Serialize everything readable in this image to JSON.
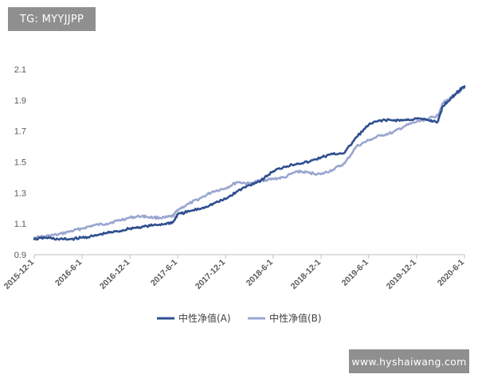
{
  "watermarks": {
    "top_left": "TG: MYYJJPP",
    "bottom_right": "www.hyshaiwang.com"
  },
  "chart_data": {
    "type": "line",
    "title": "",
    "xlabel": "",
    "ylabel": "",
    "ylim": [
      0.9,
      2.1
    ],
    "yticks": [
      0.9,
      1.1,
      1.3,
      1.5,
      1.7,
      1.9,
      2.1
    ],
    "xlim": [
      "2015-12-1",
      "2020-6-1"
    ],
    "xticks": [
      "2015-12-1",
      "2016-6-1",
      "2016-12-1",
      "2017-6-1",
      "2017-12-1",
      "2018-6-1",
      "2018-12-1",
      "2019-6-1",
      "2019-12-1",
      "2020-6-1"
    ],
    "grid": false,
    "legend": "bottom-center",
    "series": [
      {
        "name": "中性净值(A)",
        "color": "#2f4f8f",
        "points": [
          [
            "2015-12-1",
            1.0
          ],
          [
            "2016-1-15",
            1.01
          ],
          [
            "2016-3-1",
            1.0
          ],
          [
            "2016-4-15",
            1.0
          ],
          [
            "2016-6-1",
            1.01
          ],
          [
            "2016-7-15",
            1.02
          ],
          [
            "2016-9-1",
            1.04
          ],
          [
            "2016-10-15",
            1.05
          ],
          [
            "2016-12-1",
            1.07
          ],
          [
            "2017-1-15",
            1.08
          ],
          [
            "2017-3-1",
            1.09
          ],
          [
            "2017-4-15",
            1.1
          ],
          [
            "2017-5-15",
            1.11
          ],
          [
            "2017-6-1",
            1.16
          ],
          [
            "2017-7-15",
            1.18
          ],
          [
            "2017-9-1",
            1.2
          ],
          [
            "2017-10-15",
            1.23
          ],
          [
            "2017-12-1",
            1.26
          ],
          [
            "2018-1-15",
            1.31
          ],
          [
            "2018-3-1",
            1.35
          ],
          [
            "2018-4-15",
            1.38
          ],
          [
            "2018-6-1",
            1.44
          ],
          [
            "2018-7-15",
            1.47
          ],
          [
            "2018-9-1",
            1.49
          ],
          [
            "2018-10-15",
            1.5
          ],
          [
            "2018-12-1",
            1.53
          ],
          [
            "2019-1-15",
            1.55
          ],
          [
            "2019-3-1",
            1.56
          ],
          [
            "2019-4-15",
            1.66
          ],
          [
            "2019-6-1",
            1.74
          ],
          [
            "2019-7-15",
            1.77
          ],
          [
            "2019-9-1",
            1.77
          ],
          [
            "2019-10-15",
            1.77
          ],
          [
            "2019-12-1",
            1.78
          ],
          [
            "2020-1-15",
            1.77
          ],
          [
            "2020-2-20",
            1.76
          ],
          [
            "2020-3-10",
            1.86
          ],
          [
            "2020-4-15",
            1.92
          ],
          [
            "2020-5-10",
            1.96
          ],
          [
            "2020-6-1",
            1.99
          ]
        ]
      },
      {
        "name": "中性净值(B)",
        "color": "#9aa6cf",
        "points": [
          [
            "2015-12-1",
            1.01
          ],
          [
            "2016-1-15",
            1.02
          ],
          [
            "2016-3-1",
            1.03
          ],
          [
            "2016-4-15",
            1.05
          ],
          [
            "2016-6-1",
            1.07
          ],
          [
            "2016-7-15",
            1.09
          ],
          [
            "2016-9-1",
            1.1
          ],
          [
            "2016-10-15",
            1.12
          ],
          [
            "2016-12-1",
            1.14
          ],
          [
            "2017-1-15",
            1.15
          ],
          [
            "2017-3-1",
            1.14
          ],
          [
            "2017-4-15",
            1.14
          ],
          [
            "2017-5-15",
            1.15
          ],
          [
            "2017-6-1",
            1.19
          ],
          [
            "2017-7-15",
            1.23
          ],
          [
            "2017-9-1",
            1.27
          ],
          [
            "2017-10-15",
            1.31
          ],
          [
            "2017-12-1",
            1.33
          ],
          [
            "2018-1-15",
            1.37
          ],
          [
            "2018-3-1",
            1.36
          ],
          [
            "2018-4-15",
            1.38
          ],
          [
            "2018-6-1",
            1.39
          ],
          [
            "2018-7-15",
            1.4
          ],
          [
            "2018-9-1",
            1.44
          ],
          [
            "2018-10-15",
            1.43
          ],
          [
            "2018-12-1",
            1.42
          ],
          [
            "2019-1-15",
            1.45
          ],
          [
            "2019-3-1",
            1.49
          ],
          [
            "2019-4-15",
            1.6
          ],
          [
            "2019-6-1",
            1.64
          ],
          [
            "2019-7-15",
            1.67
          ],
          [
            "2019-9-1",
            1.69
          ],
          [
            "2019-10-15",
            1.73
          ],
          [
            "2019-12-1",
            1.76
          ],
          [
            "2020-1-15",
            1.78
          ],
          [
            "2020-2-20",
            1.8
          ],
          [
            "2020-3-10",
            1.88
          ],
          [
            "2020-4-15",
            1.92
          ],
          [
            "2020-5-10",
            1.95
          ],
          [
            "2020-6-1",
            1.98
          ]
        ]
      }
    ]
  }
}
